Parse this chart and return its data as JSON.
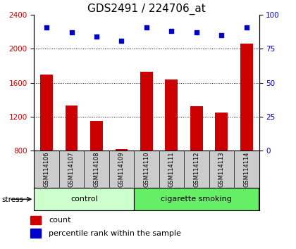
{
  "title": "GDS2491 / 224706_at",
  "samples": [
    "GSM114106",
    "GSM114107",
    "GSM114108",
    "GSM114109",
    "GSM114110",
    "GSM114111",
    "GSM114112",
    "GSM114113",
    "GSM114114"
  ],
  "counts": [
    1700,
    1330,
    1150,
    820,
    1730,
    1640,
    1320,
    1250,
    2060
  ],
  "percentile_ranks": [
    91,
    87,
    84,
    81,
    91,
    88,
    87,
    85,
    91
  ],
  "groups": [
    "control",
    "control",
    "control",
    "control",
    "cigarette smoking",
    "cigarette smoking",
    "cigarette smoking",
    "cigarette smoking",
    "cigarette smoking"
  ],
  "group_colors": {
    "control": "#ccffcc",
    "cigarette smoking": "#66ee66"
  },
  "bar_color": "#cc0000",
  "dot_color": "#0000cc",
  "ylim_left": [
    800,
    2400
  ],
  "yticks_left": [
    800,
    1200,
    1600,
    2000,
    2400
  ],
  "ylim_right": [
    0,
    100
  ],
  "yticks_right": [
    0,
    25,
    50,
    75,
    100
  ],
  "left_tick_color": "#cc0000",
  "right_tick_color": "#0000cc",
  "bg_gray": "#cccccc",
  "stress_label": "stress",
  "legend_count_label": "count",
  "legend_pct_label": "percentile rank within the sample",
  "title_fontsize": 11,
  "tick_fontsize": 7.5,
  "sample_fontsize": 6,
  "group_fontsize": 8
}
